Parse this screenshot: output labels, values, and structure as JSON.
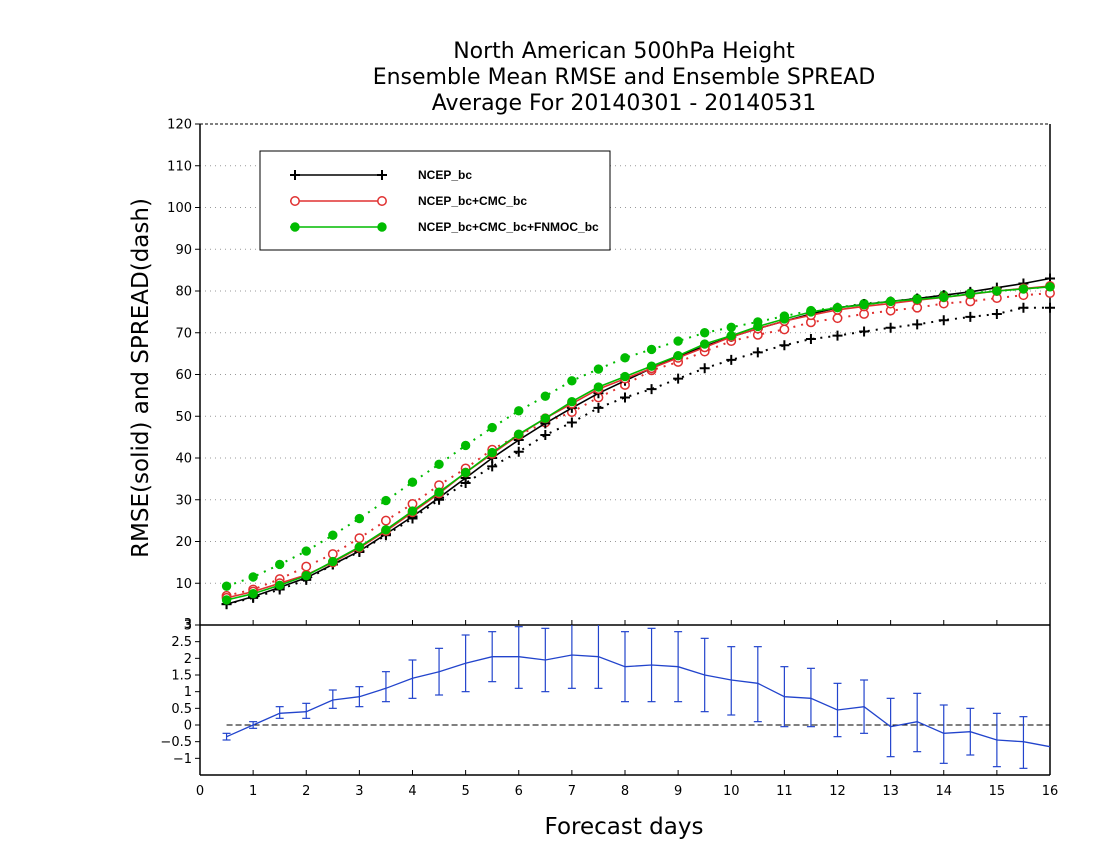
{
  "chart_data": [
    {
      "type": "line",
      "title": [
        "North American 500hPa Height",
        "Ensemble Mean RMSE and Ensemble SPREAD",
        "Average For 20140301 - 20140531"
      ],
      "xlabel": "",
      "ylabel": "RMSE(solid) and SPREAD(dash)",
      "xlim": [
        0,
        16
      ],
      "ylim": [
        0,
        120
      ],
      "yticks": [
        10,
        20,
        30,
        40,
        50,
        60,
        70,
        80,
        90,
        100,
        110,
        120
      ],
      "grid": "horizontal dotted",
      "legend_position": "top-left",
      "x": [
        0.5,
        1,
        1.5,
        2,
        2.5,
        3,
        3.5,
        4,
        4.5,
        5,
        5.5,
        6,
        6.5,
        7,
        7.5,
        8,
        8.5,
        9,
        9.5,
        10,
        10.5,
        11,
        11.5,
        12,
        12.5,
        13,
        13.5,
        14,
        14.5,
        15,
        15.5,
        16
      ],
      "series": [
        {
          "name": "NCEP_bc",
          "style": "solid",
          "color": "#000000",
          "marker": "plus",
          "values": [
            5,
            6.8,
            9,
            11.3,
            14.5,
            17.7,
            21.8,
            26,
            30.5,
            35.2,
            40,
            44.3,
            48.3,
            52,
            55.5,
            58.5,
            61.5,
            64.3,
            66.8,
            69,
            71,
            72.8,
            74.5,
            76,
            76.8,
            77.5,
            78.2,
            79,
            79.8,
            80.8,
            81.8,
            83
          ]
        },
        {
          "name": "NCEP_bc+CMC_bc",
          "style": "solid",
          "color": "#e03030",
          "marker": "circle-open",
          "values": [
            6.5,
            8,
            10,
            12,
            15,
            18.5,
            22.5,
            27,
            31.5,
            36.5,
            41,
            45.5,
            49.5,
            53,
            56.5,
            59,
            61.5,
            64,
            66.5,
            69,
            71,
            72.8,
            74.2,
            75.5,
            76.3,
            77,
            77.8,
            78.5,
            79.2,
            80,
            80.6,
            81.2
          ]
        },
        {
          "name": "NCEP_bc+CMC_bc+FNMOC_bc",
          "style": "solid",
          "color": "#00bb00",
          "marker": "circle-filled",
          "values": [
            6,
            7.5,
            9.5,
            11.8,
            15.2,
            18.7,
            22.8,
            27.3,
            31.8,
            36.5,
            41.3,
            45.7,
            49.5,
            53.5,
            57,
            59.5,
            62,
            64.5,
            67.3,
            69.3,
            71.5,
            73.3,
            75,
            76,
            76.7,
            77.5,
            78,
            78.5,
            79.3,
            80,
            80.5,
            81
          ]
        },
        {
          "name": "NCEP_bc spread",
          "style": "dash",
          "color": "#000000",
          "marker": "plus",
          "values": [
            5,
            6.5,
            8.5,
            10.8,
            14.5,
            17.5,
            21.5,
            25.5,
            30,
            34,
            38,
            41.5,
            45.5,
            48.5,
            52,
            54.5,
            56.5,
            59,
            61.5,
            63.5,
            65.3,
            67,
            68.5,
            69.3,
            70.3,
            71.2,
            72,
            73,
            73.8,
            74.5,
            76,
            76
          ]
        },
        {
          "name": "NCEP_bc+CMC_bc spread",
          "style": "dash",
          "color": "#e03030",
          "marker": "circle-open",
          "values": [
            7,
            8.5,
            11,
            14,
            17,
            20.8,
            25,
            29,
            33.5,
            37.5,
            42,
            45.5,
            48.5,
            51,
            54.5,
            57.5,
            61,
            63,
            65.5,
            68,
            69.5,
            70.8,
            72.5,
            73.5,
            74.5,
            75.3,
            76,
            77,
            77.5,
            78.3,
            79,
            79.5
          ]
        },
        {
          "name": "NCEP_bc+CMC_bc+FNMOC_bc spread",
          "style": "dash",
          "color": "#00bb00",
          "marker": "circle-filled",
          "values": [
            9.3,
            11.5,
            14.5,
            17.7,
            21.5,
            25.5,
            29.8,
            34.2,
            38.5,
            43,
            47.3,
            51.3,
            54.8,
            58.5,
            61.3,
            64,
            66,
            68,
            70,
            71.3,
            72.6,
            74,
            75.3,
            76,
            77,
            77.5,
            78.2,
            79,
            79.5,
            80,
            80.5,
            81
          ]
        }
      ]
    },
    {
      "type": "line",
      "xlabel": "Forecast days",
      "ylabel": "",
      "xlim": [
        0,
        16
      ],
      "ylim": [
        -1.5,
        3
      ],
      "xticks": [
        0,
        1,
        2,
        3,
        4,
        5,
        6,
        7,
        8,
        9,
        10,
        11,
        12,
        13,
        14,
        15,
        16
      ],
      "yticks": [
        -1,
        -0.5,
        0,
        0.5,
        1,
        1.5,
        2,
        2.5,
        3
      ],
      "ytick_labels": [
        "−1",
        "−0.5",
        "0",
        "0.5",
        "1",
        "1.5",
        "2",
        "2.5",
        "3"
      ],
      "extra_ytick_label": "3",
      "reference_line": 0,
      "x": [
        0.5,
        1,
        1.5,
        2,
        2.5,
        3,
        3.5,
        4,
        4.5,
        5,
        5.5,
        6,
        6.5,
        7,
        7.5,
        8,
        8.5,
        9,
        9.5,
        10,
        10.5,
        11,
        11.5,
        12,
        12.5,
        13,
        13.5,
        14,
        14.5,
        15,
        15.5,
        16
      ],
      "series": [
        {
          "name": "difference",
          "color": "#2244cc",
          "values": [
            -0.35,
            0,
            0.35,
            0.4,
            0.75,
            0.85,
            1.1,
            1.4,
            1.6,
            1.85,
            2.05,
            2.05,
            1.95,
            2.1,
            2.05,
            1.75,
            1.8,
            1.75,
            1.5,
            1.35,
            1.25,
            0.85,
            0.8,
            0.45,
            0.55,
            -0.05,
            0.1,
            -0.25,
            -0.2,
            -0.45,
            -0.5,
            -0.65
          ],
          "error_low": [
            -0.45,
            -0.1,
            0.2,
            0.2,
            0.5,
            0.55,
            0.7,
            0.8,
            0.9,
            1,
            1.3,
            1.1,
            1,
            1.1,
            1.1,
            0.7,
            0.7,
            0.7,
            0.4,
            0.3,
            0.1,
            -0.05,
            -0.05,
            -0.35,
            -0.25,
            -0.95,
            -0.8,
            -1.15,
            -0.9,
            -1.25,
            -1.3,
            -0.65
          ],
          "error_high": [
            -0.25,
            0.1,
            0.55,
            0.65,
            1.05,
            1.15,
            1.6,
            1.95,
            2.3,
            2.7,
            2.8,
            2.95,
            2.9,
            3.1,
            3.05,
            2.8,
            2.9,
            2.8,
            2.6,
            2.35,
            2.35,
            1.75,
            1.7,
            1.25,
            1.35,
            0.8,
            0.95,
            0.6,
            0.5,
            0.35,
            0.25,
            -0.65
          ]
        }
      ]
    }
  ]
}
